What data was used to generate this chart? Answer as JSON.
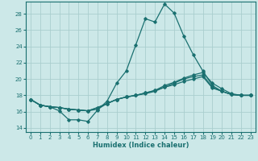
{
  "xlabel": "Humidex (Indice chaleur)",
  "xlim": [
    -0.5,
    23.5
  ],
  "ylim": [
    13.5,
    29.5
  ],
  "yticks": [
    14,
    16,
    18,
    20,
    22,
    24,
    26,
    28
  ],
  "xticks": [
    0,
    1,
    2,
    3,
    4,
    5,
    6,
    7,
    8,
    9,
    10,
    11,
    12,
    13,
    14,
    15,
    16,
    17,
    18,
    19,
    20,
    21,
    22,
    23
  ],
  "bg_color": "#cce8e8",
  "grid_color": "#aacece",
  "line_color": "#1a7070",
  "series": [
    [
      17.5,
      16.8,
      16.6,
      16.1,
      15.0,
      15.0,
      14.8,
      16.2,
      17.3,
      19.5,
      21.0,
      24.2,
      27.4,
      27.0,
      29.2,
      28.1,
      25.3,
      23.0,
      21.0,
      19.2,
      18.5,
      18.1,
      18.0,
      18.0
    ],
    [
      17.5,
      16.8,
      16.6,
      16.5,
      16.3,
      16.2,
      16.1,
      16.3,
      17.0,
      17.5,
      17.8,
      18.0,
      18.2,
      18.5,
      19.0,
      19.5,
      20.0,
      20.3,
      20.5,
      19.0,
      18.5,
      18.1,
      18.0,
      18.0
    ],
    [
      17.5,
      16.8,
      16.6,
      16.5,
      16.3,
      16.2,
      16.1,
      16.5,
      17.0,
      17.5,
      17.8,
      18.0,
      18.3,
      18.6,
      19.0,
      19.3,
      19.7,
      20.0,
      20.3,
      18.9,
      18.5,
      18.1,
      18.0,
      18.0
    ],
    [
      17.5,
      16.8,
      16.6,
      16.5,
      16.3,
      16.2,
      16.1,
      16.5,
      17.0,
      17.5,
      17.8,
      18.0,
      18.3,
      18.6,
      19.2,
      19.6,
      20.1,
      20.5,
      20.8,
      19.5,
      18.8,
      18.2,
      18.0,
      18.0
    ]
  ],
  "xlabel_fontsize": 6.0,
  "tick_fontsize": 5.0,
  "linewidth": 0.9,
  "markersize": 1.8
}
